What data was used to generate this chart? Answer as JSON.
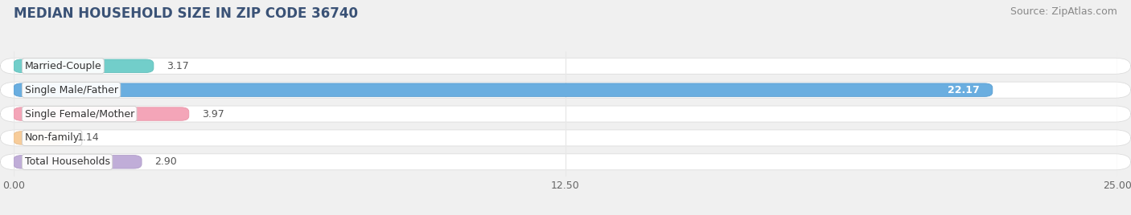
{
  "title": "MEDIAN HOUSEHOLD SIZE IN ZIP CODE 36740",
  "source": "Source: ZipAtlas.com",
  "categories": [
    "Married-Couple",
    "Single Male/Father",
    "Single Female/Mother",
    "Non-family",
    "Total Households"
  ],
  "values": [
    3.17,
    22.17,
    3.97,
    1.14,
    2.9
  ],
  "bar_colors": [
    "#72ceca",
    "#6aaee0",
    "#f4a5b8",
    "#f7cc9a",
    "#c0add8"
  ],
  "bar_edge_colors": [
    "#60beba",
    "#5a9ed0",
    "#e895a8",
    "#e7bc8a",
    "#b09dc8"
  ],
  "value_labels": [
    "3.17",
    "22.17",
    "3.97",
    "1.14",
    "2.90"
  ],
  "value_label_inside": [
    false,
    true,
    false,
    false,
    false
  ],
  "xlim": [
    0,
    25.0
  ],
  "xticks": [
    0.0,
    12.5,
    25.0
  ],
  "xtick_labels": [
    "0.00",
    "12.50",
    "25.00"
  ],
  "title_color": "#3a5276",
  "title_fontsize": 12,
  "source_fontsize": 9,
  "label_fontsize": 9,
  "value_fontsize": 9,
  "bar_height": 0.55,
  "background_color": "#f0f0f0",
  "row_bg_color": "#ffffff",
  "grid_color": "#e8e8e8"
}
